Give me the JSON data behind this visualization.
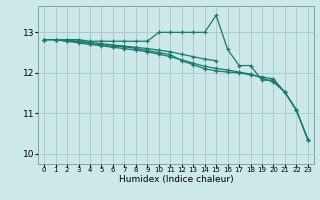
{
  "bg_color": "#cce8e8",
  "grid_color": "#aacccc",
  "line_color": "#1a7a6a",
  "xlabel": "Humidex (Indice chaleur)",
  "ylim": [
    9.75,
    13.65
  ],
  "xlim": [
    -0.5,
    23.5
  ],
  "yticks": [
    10,
    11,
    12,
    13
  ],
  "xticks": [
    0,
    1,
    2,
    3,
    4,
    5,
    6,
    7,
    8,
    9,
    10,
    11,
    12,
    13,
    14,
    15,
    16,
    17,
    18,
    19,
    20,
    21,
    22,
    23
  ],
  "lines": [
    {
      "x": [
        0,
        1,
        2,
        3,
        4,
        5,
        6,
        7,
        8,
        9,
        10,
        11,
        12,
        13,
        14,
        15,
        16,
        17,
        18,
        19,
        20,
        21,
        22,
        23
      ],
      "y": [
        12.82,
        12.82,
        12.82,
        12.82,
        12.78,
        12.78,
        12.78,
        12.78,
        12.78,
        12.78,
        13.0,
        13.0,
        13.0,
        13.0,
        13.0,
        13.42,
        12.58,
        12.18,
        12.18,
        11.82,
        11.82,
        11.52,
        11.08,
        10.35
      ]
    },
    {
      "x": [
        0,
        1,
        2,
        3,
        4,
        5,
        6,
        7,
        8,
        9,
        10,
        11,
        12,
        13,
        14,
        15,
        16,
        17,
        18,
        19,
        20,
        21,
        22,
        23
      ],
      "y": [
        12.82,
        12.82,
        12.78,
        12.78,
        12.72,
        12.7,
        12.65,
        12.65,
        12.6,
        12.55,
        12.5,
        12.45,
        12.3,
        12.2,
        12.1,
        12.05,
        12.02,
        12.0,
        11.95,
        11.9,
        11.85,
        11.52,
        11.08,
        10.35
      ]
    },
    {
      "x": [
        0,
        1,
        2,
        3,
        4,
        5,
        6,
        7,
        8,
        9,
        10,
        11,
        12,
        13,
        14,
        15,
        16,
        17,
        18,
        19,
        20,
        21,
        22,
        23
      ],
      "y": [
        12.82,
        12.82,
        12.78,
        12.74,
        12.7,
        12.67,
        12.63,
        12.6,
        12.56,
        12.52,
        12.46,
        12.4,
        12.32,
        12.24,
        12.16,
        12.11,
        12.07,
        12.02,
        11.97,
        11.87,
        11.77,
        11.52,
        11.08,
        10.35
      ]
    },
    {
      "x": [
        0,
        1,
        2,
        3,
        4,
        5,
        6,
        7,
        8,
        9,
        10,
        11,
        12,
        13,
        14,
        15
      ],
      "y": [
        12.82,
        12.82,
        12.8,
        12.78,
        12.75,
        12.72,
        12.69,
        12.66,
        12.63,
        12.6,
        12.56,
        12.52,
        12.46,
        12.4,
        12.34,
        12.3
      ]
    }
  ]
}
